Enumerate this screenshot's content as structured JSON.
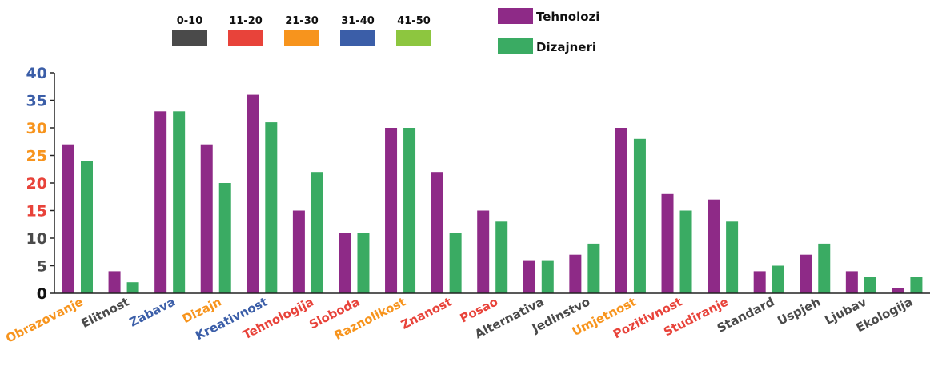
{
  "legend_ranges": [
    {
      "label": "0-10",
      "color": "#4a4a4a"
    },
    {
      "label": "11-20",
      "color": "#e8433a"
    },
    {
      "label": "21-30",
      "color": "#f7941d"
    },
    {
      "label": "31-40",
      "color": "#3b5ea8"
    },
    {
      "label": "41-50",
      "color": "#8dc63f"
    }
  ],
  "chart_data": {
    "type": "bar",
    "title": "",
    "xlabel": "",
    "ylabel": "",
    "ylim": [
      0,
      40
    ],
    "yticks": [
      0,
      5,
      10,
      15,
      20,
      25,
      30,
      35,
      40
    ],
    "ytick_colors": [
      "#111111",
      "#4a4a4a",
      "#4a4a4a",
      "#e8433a",
      "#e8433a",
      "#f7941d",
      "#f7941d",
      "#3b5ea8",
      "#3b5ea8"
    ],
    "categories": [
      "Obrazovanje",
      "Elitnost",
      "Zabava",
      "Dizajn",
      "Kreativnost",
      "Tehnologija",
      "Sloboda",
      "Raznolikost",
      "Znanost",
      "Posao",
      "Alternativa",
      "Jedinstvo",
      "Umjetnost",
      "Pozitivnost",
      "Studiranje",
      "Standard",
      "Uspjeh",
      "Ljubav",
      "Ekologija"
    ],
    "category_colors": [
      "#f7941d",
      "#4a4a4a",
      "#3b5ea8",
      "#f7941d",
      "#3b5ea8",
      "#e8433a",
      "#e8433a",
      "#f7941d",
      "#e8433a",
      "#e8433a",
      "#4a4a4a",
      "#4a4a4a",
      "#f7941d",
      "#e8433a",
      "#e8433a",
      "#4a4a4a",
      "#4a4a4a",
      "#4a4a4a",
      "#4a4a4a"
    ],
    "series": [
      {
        "name": "Tehnolozi",
        "color": "#8e2a87",
        "values": [
          27,
          4,
          33,
          27,
          36,
          15,
          11,
          30,
          22,
          15,
          6,
          7,
          30,
          18,
          17,
          4,
          7,
          4,
          1
        ]
      },
      {
        "name": "Dizajneri",
        "color": "#3aab63",
        "values": [
          24,
          2,
          33,
          20,
          31,
          22,
          11,
          30,
          11,
          13,
          6,
          9,
          28,
          15,
          13,
          5,
          9,
          3,
          3
        ]
      }
    ],
    "legend_position": "top",
    "grid": false
  }
}
